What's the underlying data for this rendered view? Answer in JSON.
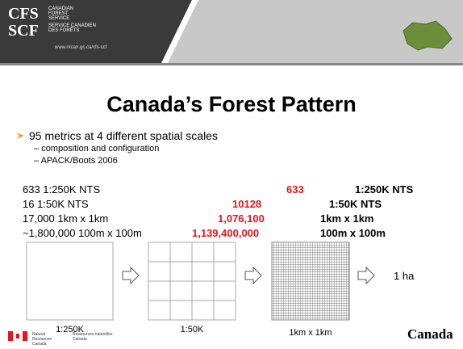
{
  "header": {
    "cfs": "CFS",
    "cfs_sub": "CANADIAN FOREST SERVICE",
    "scf": "SCF",
    "scf_sub": "SERVICE CANADIEN DES FORÊTS",
    "url": "www.nrcan.gc.ca/cfs-scf"
  },
  "title": "Canada’s Forest Pattern",
  "bullet": "95 metrics at 4 different spatial scales",
  "subbullets": [
    "composition and configuration",
    "APACK/Boots 2006"
  ],
  "rows": [
    {
      "left": "633 1:250K NTS",
      "number": "633",
      "unit": "1:250K NTS"
    },
    {
      "left": "16 1:50K NTS",
      "number": "10128",
      "unit": "1:50K NTS"
    },
    {
      "left": "17,000 1km x 1km",
      "number": "1,076,100",
      "unit": "1km x 1km"
    },
    {
      "left": "~1,800,000 100m x 100m",
      "number": "1,139,400,000",
      "unit": "100m x 100m"
    }
  ],
  "diagram": {
    "labels": [
      "1:250K",
      "1:50K",
      "1km x 1km"
    ],
    "end_label": "1 ha"
  },
  "footer": {
    "en": "Natural Resources Canada",
    "fr": "Ressources naturelles Canada",
    "wordmark": "Canada"
  }
}
